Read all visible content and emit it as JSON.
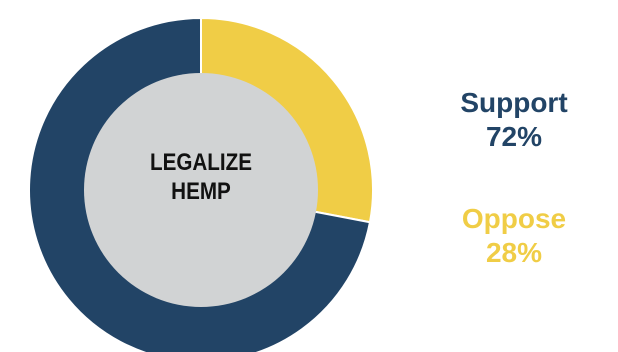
{
  "chart_data": {
    "type": "pie",
    "variant": "donut",
    "center_label": [
      "LEGALIZE",
      "HEMP"
    ],
    "slices": [
      {
        "name": "Support",
        "value": 72,
        "value_label": "72%",
        "color": "#224466"
      },
      {
        "name": "Oppose",
        "value": 28,
        "value_label": "28%",
        "color": "#f0cd46"
      }
    ],
    "hole_color": "#d1d3d4",
    "legend_placement": "right"
  }
}
